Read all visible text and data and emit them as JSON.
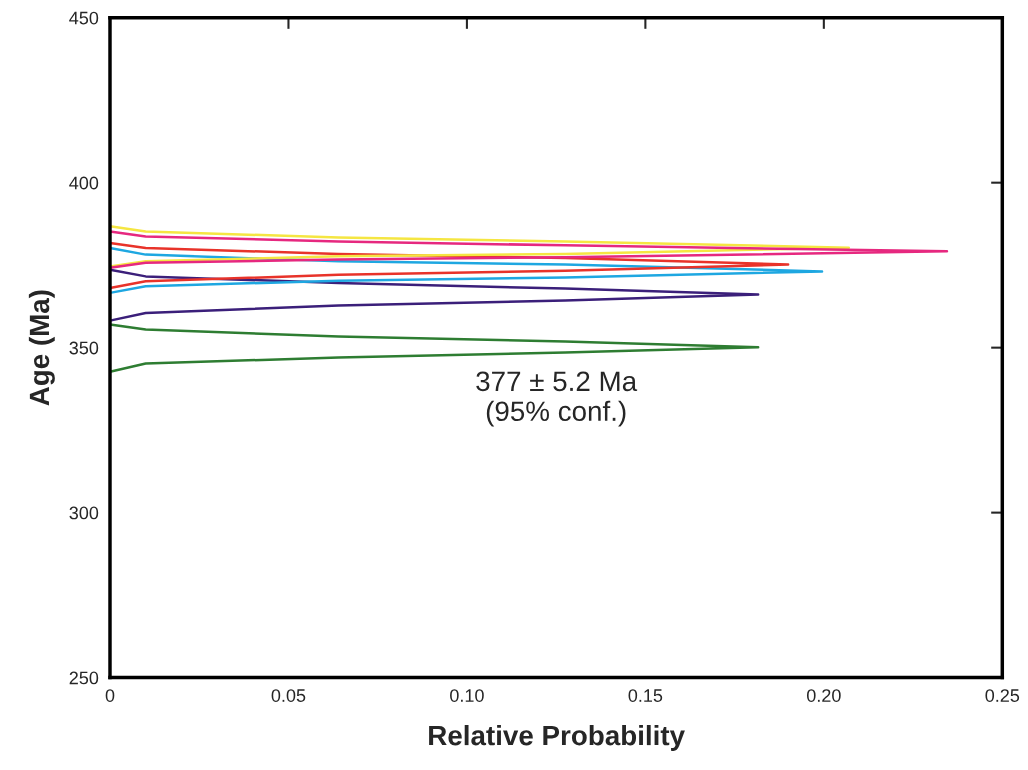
{
  "chart_data": {
    "type": "line",
    "xlabel": "Relative Probability",
    "ylabel": "Age (Ma)",
    "xlim": [
      0,
      0.25
    ],
    "xticks": [
      0,
      0.05,
      {
        "value": 0.1,
        "label": "0.10"
      },
      0.15,
      {
        "value": 0.2,
        "label": "0.20"
      },
      0.25
    ],
    "ylim": [
      250,
      450
    ],
    "yticks": [
      250,
      300,
      350,
      400,
      450
    ],
    "grid": false,
    "legend": false,
    "marker": "none",
    "line_style": "solid",
    "annotations": [
      "377 ± 5.2 Ma\n(95% conf.)"
    ],
    "series": [
      {
        "color": "#2e7d32",
        "x": [
          0,
          0.01,
          0.064,
          0.1275,
          0.1816,
          0.1275,
          0.064,
          0.01,
          0
        ],
        "values": [
          342.7,
          345.2,
          347.0,
          348.5,
          350.1,
          351.9,
          353.4,
          355.5,
          357.0
        ]
      },
      {
        "color": "#3b1f7a",
        "x": [
          0,
          0.01,
          0.064,
          0.1275,
          0.1816,
          0.1275,
          0.064,
          0.01,
          0
        ],
        "values": [
          358.2,
          360.5,
          362.8,
          364.3,
          366.1,
          367.9,
          369.6,
          371.6,
          373.6
        ]
      },
      {
        "color": "#1ea7e1",
        "x": [
          0,
          0.01,
          0.064,
          0.1275,
          0.1995,
          0.1275,
          0.064,
          0.01,
          0
        ],
        "values": [
          366.6,
          368.6,
          370.3,
          371.3,
          373.1,
          375.2,
          376.2,
          378.2,
          380.2
        ]
      },
      {
        "color": "#e8332a",
        "x": [
          0,
          0.01,
          0.064,
          0.1275,
          0.19,
          0.1275,
          0.064,
          0.01,
          0
        ],
        "values": [
          368.1,
          370.1,
          372.1,
          373.3,
          375.2,
          377.2,
          378.4,
          380.2,
          381.7
        ]
      },
      {
        "color": "#f5e642",
        "x": [
          0,
          0.01,
          0.064,
          0.1275,
          0.207,
          0.1275,
          0.064,
          0.01,
          0
        ],
        "values": [
          374.6,
          376.2,
          377.7,
          378.4,
          380.3,
          382.2,
          383.4,
          385.2,
          386.8
        ]
      },
      {
        "color": "#e6287f",
        "x": [
          0,
          0.01,
          0.064,
          0.1275,
          0.2345,
          0.1275,
          0.064,
          0.01,
          0
        ],
        "values": [
          374.2,
          375.7,
          376.7,
          377.4,
          379.2,
          381.0,
          382.2,
          383.7,
          385.2
        ]
      }
    ]
  }
}
